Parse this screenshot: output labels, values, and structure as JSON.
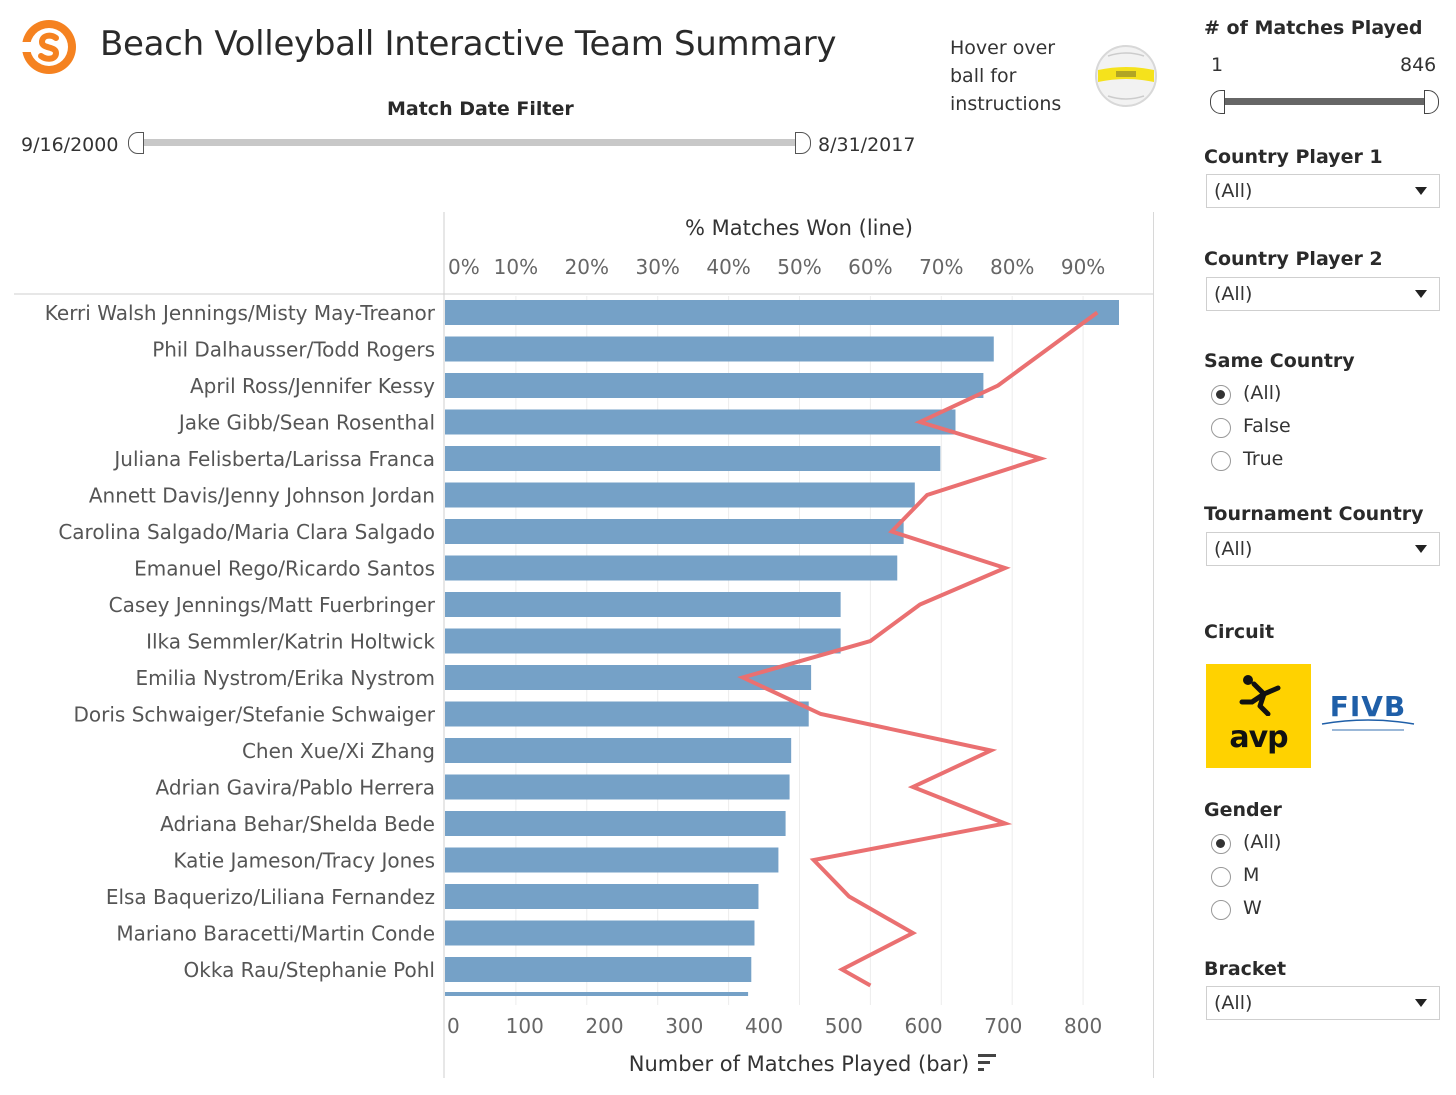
{
  "header": {
    "title": "Beach Volleyball Interactive Team Summary",
    "hover_note": "Hover over ball for instructions",
    "brand_color": "#f58220"
  },
  "date_filter": {
    "label": "Match Date Filter",
    "start": "9/16/2000",
    "end": "8/31/2017"
  },
  "panel": {
    "matches_played": {
      "title": "# of Matches Played",
      "min": "1",
      "max": "846"
    },
    "country_player_1": {
      "title": "Country Player 1",
      "value": "(All)"
    },
    "country_player_2": {
      "title": "Country Player 2",
      "value": "(All)"
    },
    "same_country": {
      "title": "Same Country",
      "options": [
        "(All)",
        "False",
        "True"
      ],
      "selected": "(All)"
    },
    "tournament_country": {
      "title": "Tournament Country",
      "value": "(All)"
    },
    "circuit": {
      "title": "Circuit",
      "logos": [
        "avp",
        "FIVB"
      ]
    },
    "gender": {
      "title": "Gender",
      "options": [
        "(All)",
        "M",
        "W"
      ],
      "selected": "(All)"
    },
    "bracket": {
      "title": "Bracket",
      "value": "(All)"
    }
  },
  "chart_data": {
    "type": "bar",
    "top_axis_title": "% Matches Won (line)",
    "bottom_axis_title": "Number of Matches Played (bar)",
    "top_ticks": [
      "0%",
      "10%",
      "20%",
      "30%",
      "40%",
      "50%",
      "60%",
      "70%",
      "80%",
      "90%"
    ],
    "bottom_ticks": [
      "0",
      "100",
      "200",
      "300",
      "400",
      "500",
      "600",
      "700",
      "800"
    ],
    "xlim_matches": [
      0,
      850
    ],
    "xlim_pct": [
      0,
      100
    ],
    "bar_color": "#75a1c7",
    "line_color": "#ea7071",
    "categories": [
      "Kerri Walsh Jennings/Misty May-Treanor",
      "Phil Dalhausser/Todd Rogers",
      "April Ross/Jennifer Kessy",
      "Jake Gibb/Sean Rosenthal",
      "Juliana Felisberta/Larissa Franca",
      "Annett Davis/Jenny Johnson Jordan",
      "Carolina Salgado/Maria Clara Salgado",
      "Emanuel Rego/Ricardo Santos",
      "Casey Jennings/Matt Fuerbringer",
      "Ilka Semmler/Katrin Holtwick",
      "Emilia Nystrom/Erika Nystrom",
      "Doris Schwaiger/Stefanie Schwaiger",
      "Chen Xue/Xi Zhang",
      "Adrian Gavira/Pablo Herrera",
      "Adriana Behar/Shelda Bede",
      "Katie Jameson/Tracy Jones",
      "Elsa Baquerizo/Liliana Fernandez",
      "Mariano Baracetti/Martin Conde",
      "Okka Rau/Stephanie Pohl"
    ],
    "series": [
      {
        "type": "bar",
        "values": [
          845,
          688,
          675,
          640,
          621,
          589,
          575,
          567,
          496,
          496,
          459,
          456,
          434,
          432,
          427,
          418,
          393,
          388,
          384
        ]
      },
      {
        "type": "line",
        "values": [
          92,
          85,
          78,
          67,
          84,
          68,
          63,
          79,
          67,
          60,
          42,
          53,
          77,
          66,
          79,
          52,
          57,
          66,
          56
        ]
      }
    ]
  }
}
